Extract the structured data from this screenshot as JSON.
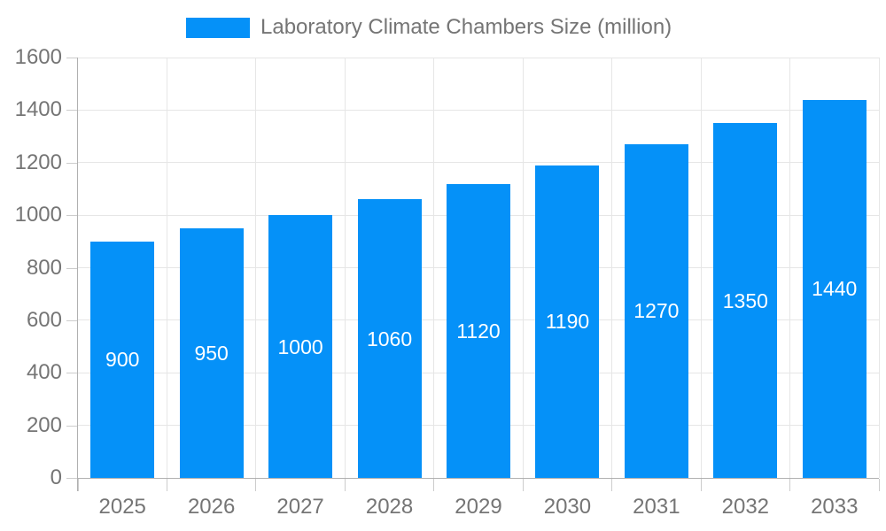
{
  "chart_data": {
    "type": "bar",
    "title": "Laboratory Climate Chambers Size (million)",
    "categories": [
      "2025",
      "2026",
      "2027",
      "2028",
      "2029",
      "2030",
      "2031",
      "2032",
      "2033"
    ],
    "values": [
      900,
      950,
      1000,
      1060,
      1120,
      1190,
      1270,
      1350,
      1440
    ],
    "xlabel": "",
    "ylabel": "",
    "ylim": [
      0,
      1600
    ],
    "yticks": [
      0,
      200,
      400,
      600,
      800,
      1000,
      1200,
      1400,
      1600
    ],
    "grid": true,
    "legend_position": "top",
    "bar_labels_visible": true,
    "colors": {
      "bar": "#0591f8",
      "bar_label": "#ffffff",
      "axis_text": "#757575",
      "grid_line": "#e6e6e6",
      "axis_line": "#b0b0b0",
      "tick_line": "#cccccc",
      "background": "#ffffff"
    }
  }
}
